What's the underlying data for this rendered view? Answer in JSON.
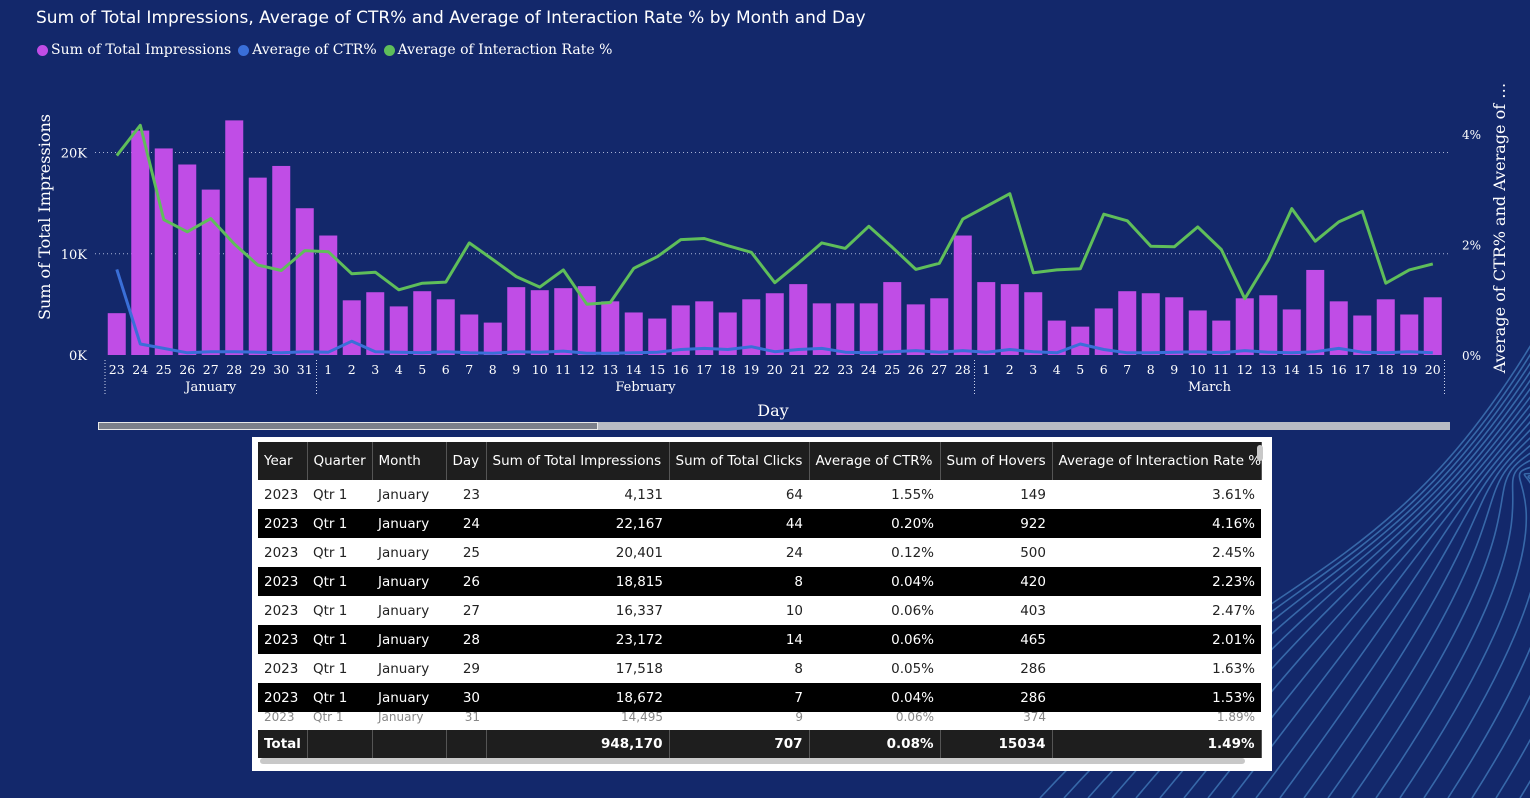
{
  "title": "Sum of Total Impressions, Average of CTR% and Average of Interaction Rate % by Month and Day",
  "legend": [
    {
      "label": "Sum of Total Impressions",
      "color": "#c04de6"
    },
    {
      "label": "Average of CTR%",
      "color": "#3a6fd8"
    },
    {
      "label": "Average of Interaction Rate %",
      "color": "#5fbe5a"
    }
  ],
  "chart_data": {
    "type": "bar+line",
    "title": "Sum of Total Impressions, Average of CTR% and Average of Interaction Rate % by Month and Day",
    "xlabel": "Day",
    "ylabel": "Sum of Total Impressions",
    "y2label": "Average of CTR% and Average of …",
    "ylim": [
      0,
      24000
    ],
    "y2lim": [
      0,
      4.4
    ],
    "yticks": [
      "0K",
      "10K",
      "20K"
    ],
    "y2ticks": [
      "0%",
      "2%",
      "4%"
    ],
    "months": [
      {
        "name": "January",
        "start": 0,
        "end": 8
      },
      {
        "name": "February",
        "start": 9,
        "end": 36
      },
      {
        "name": "March",
        "start": 37,
        "end": 56
      }
    ],
    "categories": [
      "23",
      "24",
      "25",
      "26",
      "27",
      "28",
      "29",
      "30",
      "31",
      "1",
      "2",
      "3",
      "4",
      "5",
      "6",
      "7",
      "8",
      "9",
      "10",
      "11",
      "12",
      "13",
      "14",
      "15",
      "16",
      "17",
      "18",
      "19",
      "20",
      "21",
      "22",
      "23",
      "24",
      "25",
      "26",
      "27",
      "28",
      "1",
      "2",
      "3",
      "4",
      "5",
      "6",
      "7",
      "8",
      "9",
      "10",
      "11",
      "12",
      "13",
      "14",
      "15",
      "16",
      "17",
      "18",
      "19",
      "20"
    ],
    "series": [
      {
        "name": "Sum of Total Impressions",
        "axis": "left",
        "kind": "bar",
        "color": "#c04de6",
        "values": [
          4131,
          22167,
          20401,
          18815,
          16337,
          23172,
          17518,
          18672,
          14495,
          11800,
          5400,
          6200,
          4800,
          6300,
          5500,
          4000,
          3200,
          6700,
          6400,
          6600,
          6800,
          5300,
          4200,
          3600,
          4900,
          5300,
          4200,
          5500,
          6100,
          7000,
          5100,
          5100,
          5100,
          7200,
          5000,
          5600,
          11800,
          7200,
          7000,
          6200,
          3400,
          2800,
          4600,
          6300,
          6100,
          5700,
          4400,
          3400,
          5600,
          5900,
          4500,
          8400,
          5300,
          3900,
          5500,
          4000,
          5700
        ]
      },
      {
        "name": "Average of CTR%",
        "axis": "right",
        "kind": "line",
        "color": "#3a6fd8",
        "values": [
          1.55,
          0.2,
          0.12,
          0.04,
          0.06,
          0.06,
          0.05,
          0.04,
          0.06,
          0.05,
          0.25,
          0.06,
          0.05,
          0.04,
          0.06,
          0.04,
          0.03,
          0.06,
          0.05,
          0.07,
          0.03,
          0.03,
          0.04,
          0.05,
          0.1,
          0.12,
          0.1,
          0.15,
          0.06,
          0.1,
          0.12,
          0.05,
          0.04,
          0.06,
          0.08,
          0.05,
          0.08,
          0.05,
          0.1,
          0.06,
          0.04,
          0.2,
          0.1,
          0.04,
          0.04,
          0.05,
          0.06,
          0.04,
          0.08,
          0.05,
          0.04,
          0.06,
          0.12,
          0.05,
          0.04,
          0.06,
          0.04
        ]
      },
      {
        "name": "Average of Interaction Rate %",
        "axis": "right",
        "kind": "line",
        "color": "#5fbe5a",
        "values": [
          3.61,
          4.16,
          2.45,
          2.23,
          2.47,
          2.01,
          1.63,
          1.53,
          1.89,
          1.87,
          1.47,
          1.5,
          1.18,
          1.3,
          1.32,
          2.03,
          1.73,
          1.42,
          1.23,
          1.54,
          0.92,
          0.95,
          1.57,
          1.78,
          2.09,
          2.11,
          1.98,
          1.86,
          1.31,
          1.66,
          2.03,
          1.93,
          2.33,
          1.95,
          1.55,
          1.66,
          2.46,
          2.69,
          2.92,
          1.49,
          1.54,
          1.56,
          2.55,
          2.43,
          1.97,
          1.96,
          2.32,
          1.91,
          1.02,
          1.72,
          2.65,
          2.06,
          2.41,
          2.6,
          1.3,
          1.54,
          1.65
        ]
      }
    ]
  },
  "table": {
    "headers": [
      "Year",
      "Quarter",
      "Month",
      "Day",
      "Sum of Total Impressions",
      "Sum of Total Clicks",
      "Average of CTR%",
      "Sum of Hovers",
      "Average of Interaction Rate %"
    ],
    "rows": [
      [
        "2023",
        "Qtr 1",
        "January",
        "23",
        "4,131",
        "64",
        "1.55%",
        "149",
        "3.61%"
      ],
      [
        "2023",
        "Qtr 1",
        "January",
        "24",
        "22,167",
        "44",
        "0.20%",
        "922",
        "4.16%"
      ],
      [
        "2023",
        "Qtr 1",
        "January",
        "25",
        "20,401",
        "24",
        "0.12%",
        "500",
        "2.45%"
      ],
      [
        "2023",
        "Qtr 1",
        "January",
        "26",
        "18,815",
        "8",
        "0.04%",
        "420",
        "2.23%"
      ],
      [
        "2023",
        "Qtr 1",
        "January",
        "27",
        "16,337",
        "10",
        "0.06%",
        "403",
        "2.47%"
      ],
      [
        "2023",
        "Qtr 1",
        "January",
        "28",
        "23,172",
        "14",
        "0.06%",
        "465",
        "2.01%"
      ],
      [
        "2023",
        "Qtr 1",
        "January",
        "29",
        "17,518",
        "8",
        "0.05%",
        "286",
        "1.63%"
      ],
      [
        "2023",
        "Qtr 1",
        "January",
        "30",
        "18,672",
        "7",
        "0.04%",
        "286",
        "1.53%"
      ]
    ],
    "partial_row": [
      "2023",
      "Qtr 1",
      "January",
      "31",
      "14,495",
      "9",
      "0.06%",
      "374",
      "1.89%"
    ],
    "total": [
      "Total",
      "",
      "",
      "",
      "948,170",
      "707",
      "0.08%",
      "15034",
      "1.49%"
    ]
  }
}
